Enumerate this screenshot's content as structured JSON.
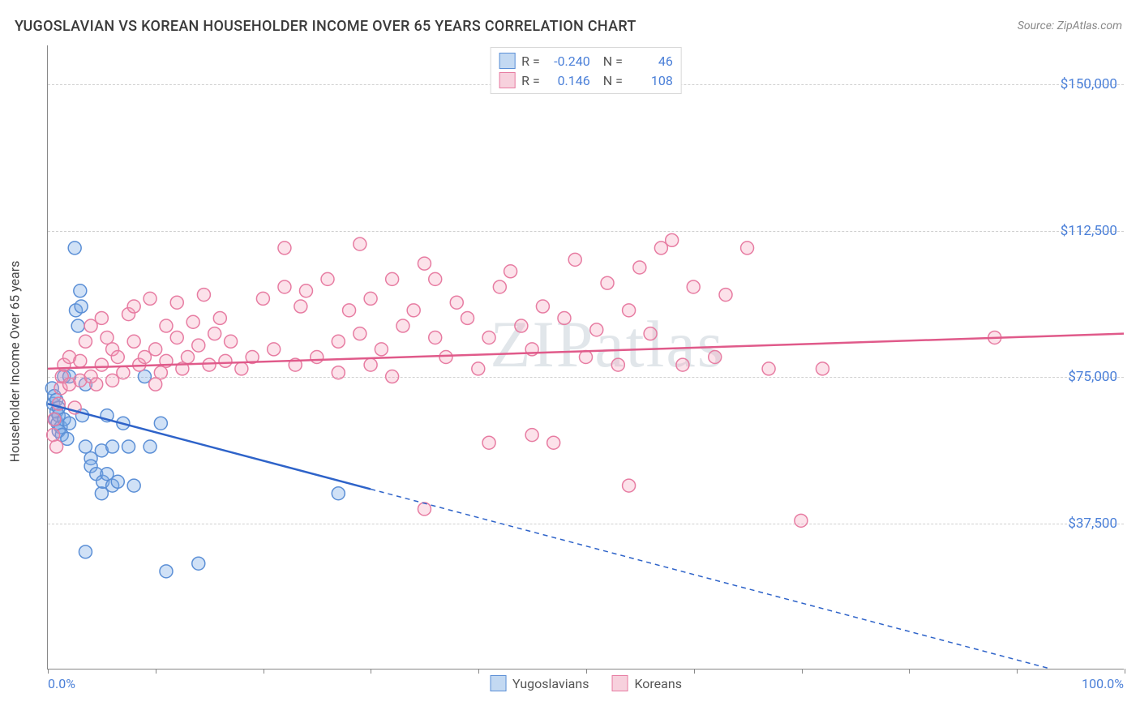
{
  "title": "YUGOSLAVIAN VS KOREAN HOUSEHOLDER INCOME OVER 65 YEARS CORRELATION CHART",
  "source": "Source: ZipAtlas.com",
  "watermark": "ZIPatlas",
  "y_axis_title": "Householder Income Over 65 years",
  "chart": {
    "type": "scatter",
    "xlim": [
      0,
      100
    ],
    "ylim": [
      0,
      160000
    ],
    "x_ticks": [
      0,
      10,
      20,
      30,
      40,
      50,
      60,
      70,
      80,
      90,
      100
    ],
    "x_tick_labels": {
      "left": "0.0%",
      "right": "100.0%"
    },
    "y_grid": [
      {
        "v": 37500,
        "label": "$37,500"
      },
      {
        "v": 75000,
        "label": "$75,000"
      },
      {
        "v": 112500,
        "label": "$112,500"
      },
      {
        "v": 150000,
        "label": "$150,000"
      }
    ],
    "background_color": "#ffffff",
    "grid_color": "#d0d0d0",
    "point_radius": 8,
    "point_stroke_width": 1.5,
    "line_width": 2.5,
    "series": [
      {
        "name": "Yugoslavians",
        "color_fill": "rgba(120,170,230,0.35)",
        "color_stroke": "#5b8fd6",
        "swatch_fill": "#c3d9f2",
        "swatch_border": "#5b8fd6",
        "line_color": "#2e63c9",
        "R": "-0.240",
        "N": "46",
        "regression": {
          "x1": 0,
          "y1": 68000,
          "x2": 100,
          "y2": -5000
        },
        "regression_solid_until_x": 30,
        "points": [
          [
            0.4,
            72000
          ],
          [
            0.5,
            68000
          ],
          [
            0.6,
            70000
          ],
          [
            0.7,
            64000
          ],
          [
            0.8,
            66000
          ],
          [
            0.8,
            69000
          ],
          [
            0.9,
            63000
          ],
          [
            1.0,
            65000
          ],
          [
            1.0,
            67000
          ],
          [
            1.0,
            61000
          ],
          [
            1.2,
            62000
          ],
          [
            1.3,
            60000
          ],
          [
            1.5,
            64000
          ],
          [
            1.5,
            75000
          ],
          [
            1.8,
            59000
          ],
          [
            2.0,
            75000
          ],
          [
            2.0,
            63000
          ],
          [
            2.5,
            108000
          ],
          [
            2.6,
            92000
          ],
          [
            2.8,
            88000
          ],
          [
            3.0,
            97000
          ],
          [
            3.1,
            93000
          ],
          [
            3.2,
            65000
          ],
          [
            3.5,
            73000
          ],
          [
            3.5,
            57000
          ],
          [
            3.5,
            30000
          ],
          [
            4.0,
            54000
          ],
          [
            4.0,
            52000
          ],
          [
            4.5,
            50000
          ],
          [
            5.0,
            56000
          ],
          [
            5.0,
            45000
          ],
          [
            5.1,
            48000
          ],
          [
            5.5,
            50000
          ],
          [
            5.5,
            65000
          ],
          [
            6.0,
            47000
          ],
          [
            6.0,
            57000
          ],
          [
            6.5,
            48000
          ],
          [
            7.0,
            63000
          ],
          [
            7.5,
            57000
          ],
          [
            8.0,
            47000
          ],
          [
            9.0,
            75000
          ],
          [
            9.5,
            57000
          ],
          [
            10.5,
            63000
          ],
          [
            11.0,
            25000
          ],
          [
            14.0,
            27000
          ],
          [
            27.0,
            45000
          ]
        ]
      },
      {
        "name": "Koreans",
        "color_fill": "rgba(244,160,185,0.30)",
        "color_stroke": "#e77ca2",
        "swatch_fill": "#f7d1dd",
        "swatch_border": "#e77ca2",
        "line_color": "#e05a8a",
        "R": "0.146",
        "N": "108",
        "regression": {
          "x1": 0,
          "y1": 77000,
          "x2": 100,
          "y2": 86000
        },
        "regression_solid_until_x": 100,
        "points": [
          [
            0.5,
            60000
          ],
          [
            0.6,
            64000
          ],
          [
            0.8,
            57000
          ],
          [
            1.0,
            68000
          ],
          [
            1.2,
            72000
          ],
          [
            1.3,
            75000
          ],
          [
            1.5,
            78000
          ],
          [
            2.0,
            73000
          ],
          [
            2.0,
            80000
          ],
          [
            2.5,
            67000
          ],
          [
            3.0,
            74000
          ],
          [
            3.0,
            79000
          ],
          [
            3.5,
            84000
          ],
          [
            4.0,
            75000
          ],
          [
            4.0,
            88000
          ],
          [
            4.5,
            73000
          ],
          [
            5.0,
            78000
          ],
          [
            5.0,
            90000
          ],
          [
            5.5,
            85000
          ],
          [
            6.0,
            74000
          ],
          [
            6.0,
            82000
          ],
          [
            6.5,
            80000
          ],
          [
            7.0,
            76000
          ],
          [
            7.5,
            91000
          ],
          [
            8.0,
            84000
          ],
          [
            8.0,
            93000
          ],
          [
            8.5,
            78000
          ],
          [
            9.0,
            80000
          ],
          [
            9.5,
            95000
          ],
          [
            10.0,
            82000
          ],
          [
            10.0,
            73000
          ],
          [
            10.5,
            76000
          ],
          [
            11.0,
            88000
          ],
          [
            11.0,
            79000
          ],
          [
            12.0,
            85000
          ],
          [
            12.0,
            94000
          ],
          [
            12.5,
            77000
          ],
          [
            13.0,
            80000
          ],
          [
            13.5,
            89000
          ],
          [
            14.0,
            83000
          ],
          [
            14.5,
            96000
          ],
          [
            15.0,
            78000
          ],
          [
            15.5,
            86000
          ],
          [
            16.0,
            90000
          ],
          [
            16.5,
            79000
          ],
          [
            17.0,
            84000
          ],
          [
            18.0,
            77000
          ],
          [
            19.0,
            80000
          ],
          [
            20.0,
            95000
          ],
          [
            21.0,
            82000
          ],
          [
            22.0,
            98000
          ],
          [
            22.0,
            108000
          ],
          [
            23.0,
            78000
          ],
          [
            23.5,
            93000
          ],
          [
            24.0,
            97000
          ],
          [
            25.0,
            80000
          ],
          [
            26.0,
            100000
          ],
          [
            27.0,
            84000
          ],
          [
            27.0,
            76000
          ],
          [
            28.0,
            92000
          ],
          [
            29.0,
            86000
          ],
          [
            29.0,
            109000
          ],
          [
            30.0,
            78000
          ],
          [
            30.0,
            95000
          ],
          [
            31.0,
            82000
          ],
          [
            32.0,
            75000
          ],
          [
            32.0,
            100000
          ],
          [
            33.0,
            88000
          ],
          [
            34.0,
            92000
          ],
          [
            35.0,
            104000
          ],
          [
            35.0,
            41000
          ],
          [
            36.0,
            85000
          ],
          [
            36.0,
            100000
          ],
          [
            37.0,
            80000
          ],
          [
            38.0,
            94000
          ],
          [
            39.0,
            90000
          ],
          [
            40.0,
            77000
          ],
          [
            41.0,
            85000
          ],
          [
            41.0,
            58000
          ],
          [
            42.0,
            98000
          ],
          [
            43.0,
            102000
          ],
          [
            44.0,
            88000
          ],
          [
            45.0,
            82000
          ],
          [
            45.0,
            60000
          ],
          [
            46.0,
            93000
          ],
          [
            47.0,
            58000
          ],
          [
            48.0,
            90000
          ],
          [
            49.0,
            105000
          ],
          [
            50.0,
            80000
          ],
          [
            51.0,
            87000
          ],
          [
            52.0,
            99000
          ],
          [
            53.0,
            78000
          ],
          [
            54.0,
            92000
          ],
          [
            54.0,
            47000
          ],
          [
            55.0,
            103000
          ],
          [
            56.0,
            86000
          ],
          [
            57.0,
            108000
          ],
          [
            58.0,
            110000
          ],
          [
            59.0,
            78000
          ],
          [
            60.0,
            98000
          ],
          [
            62.0,
            80000
          ],
          [
            63.0,
            96000
          ],
          [
            65.0,
            108000
          ],
          [
            67.0,
            77000
          ],
          [
            70.0,
            38000
          ],
          [
            72.0,
            77000
          ],
          [
            88.0,
            85000
          ]
        ]
      }
    ],
    "bottom_legend": [
      "Yugoslavians",
      "Koreans"
    ]
  }
}
